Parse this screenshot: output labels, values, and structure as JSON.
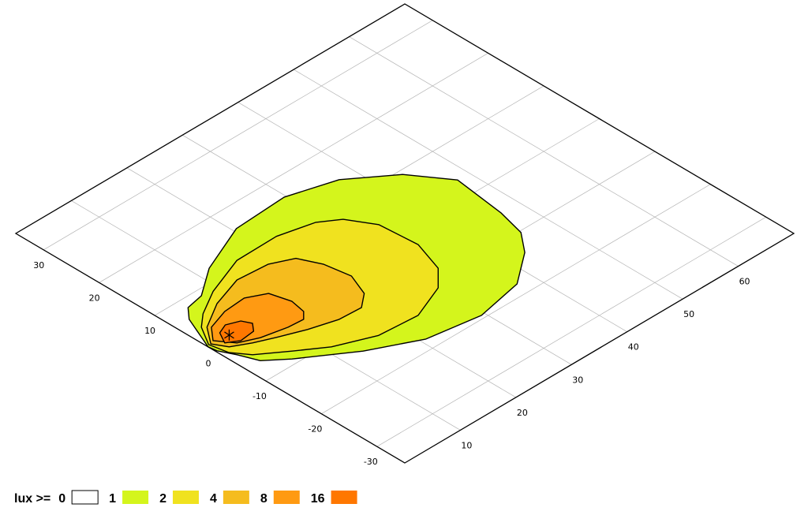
{
  "chart_data": {
    "type": "contour",
    "xlim": [
      0,
      70
    ],
    "ylim": [
      -35,
      35
    ],
    "xticks": [
      10,
      20,
      30,
      40,
      50,
      60
    ],
    "yticks": [
      -30,
      -20,
      -10,
      0,
      10,
      20,
      30
    ],
    "grid": true,
    "legend_title": "lux >=",
    "levels": [
      {
        "value": 0,
        "color": "#ffffff"
      },
      {
        "value": 1,
        "color": "#d4f51c",
        "contour": [
          [
            0,
            0.4
          ],
          [
            2.5,
            6.3
          ],
          [
            4.2,
            8.2
          ],
          [
            7.2,
            8.8
          ],
          [
            12.1,
            12.3
          ],
          [
            20.6,
            15.9
          ],
          [
            29.7,
            16.4
          ],
          [
            37.3,
            14.1
          ],
          [
            43.8,
            9.2
          ],
          [
            47.9,
            3.4
          ],
          [
            46.8,
            -5.5
          ],
          [
            45.6,
            -10.3
          ],
          [
            42.9,
            -13.7
          ],
          [
            37.4,
            -17.8
          ],
          [
            29.4,
            -19.4
          ],
          [
            20.8,
            -18
          ],
          [
            13.3,
            -14.2
          ],
          [
            5.7,
            -9
          ],
          [
            2.6,
            -6.4
          ],
          [
            1.4,
            -3.4
          ],
          [
            0.2,
            -1
          ]
        ]
      },
      {
        "value": 2,
        "color": "#f0e21f",
        "contour": [
          [
            0.4,
            0.7
          ],
          [
            2.4,
            4
          ],
          [
            4.6,
            5.9
          ],
          [
            8.9,
            8.4
          ],
          [
            15.8,
            11
          ],
          [
            23,
            11.1
          ],
          [
            28.7,
            9.7
          ],
          [
            31.6,
            7.7
          ],
          [
            34,
            3.7
          ],
          [
            34.5,
            -2.9
          ],
          [
            32.7,
            -8.3
          ],
          [
            29.7,
            -11.3
          ],
          [
            23.7,
            -13.7
          ],
          [
            17.1,
            -13.2
          ],
          [
            11.1,
            -10.7
          ],
          [
            6.9,
            -7.8
          ],
          [
            2.8,
            -4.8
          ],
          [
            1,
            -2.3
          ]
        ]
      },
      {
        "value": 4,
        "color": "#f5bc1e",
        "contour": [
          [
            0.7,
            0.6
          ],
          [
            2.9,
            3.5
          ],
          [
            7.4,
            6.2
          ],
          [
            12.8,
            8
          ],
          [
            18,
            7.6
          ],
          [
            21.4,
            6
          ],
          [
            23,
            2.6
          ],
          [
            23.7,
            -1.7
          ],
          [
            22.2,
            -5.5
          ],
          [
            19.8,
            -7.4
          ],
          [
            16,
            -7.2
          ],
          [
            11.6,
            -5.9
          ],
          [
            7.6,
            -4.3
          ],
          [
            4.6,
            -3
          ],
          [
            1.9,
            -1.5
          ]
        ]
      },
      {
        "value": 8,
        "color": "#ff9a12",
        "contour": [
          [
            1.4,
            0.9
          ],
          [
            3.3,
            3.1
          ],
          [
            6.9,
            4.3
          ],
          [
            10.7,
            4.6
          ],
          [
            13.6,
            3.1
          ],
          [
            14.5,
            -0.2
          ],
          [
            14,
            -2.8
          ],
          [
            12.8,
            -4
          ],
          [
            10.2,
            -3.8
          ],
          [
            6.1,
            -2.9
          ],
          [
            3.2,
            -1.6
          ]
        ]
      },
      {
        "value": 16,
        "color": "#ff7700",
        "contour": [
          [
            3.2,
            1.5
          ],
          [
            4.9,
            2.2
          ],
          [
            6.9,
            1.4
          ],
          [
            7.6,
            0
          ],
          [
            6.5,
            -1.3
          ],
          [
            3.9,
            -1.6
          ],
          [
            2.1,
            -0.5
          ]
        ]
      }
    ],
    "source": [
      3.7,
      0.3
    ]
  }
}
